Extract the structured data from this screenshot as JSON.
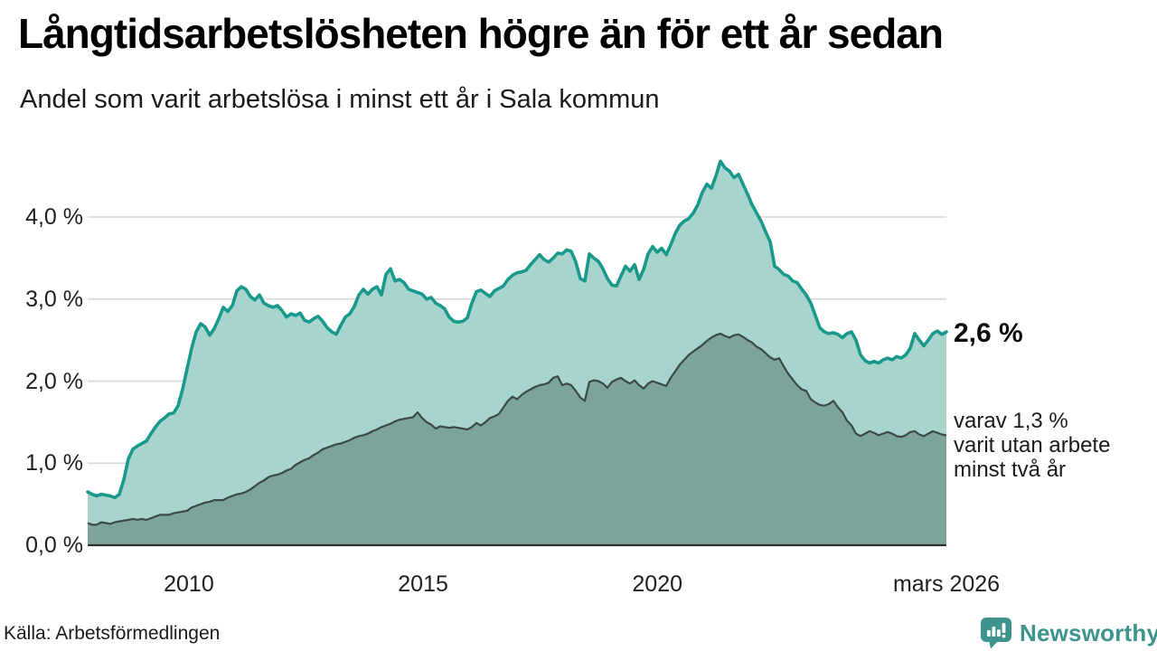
{
  "header": {
    "title": "Långtidsarbetslösheten högre än för ett år sedan",
    "subtitle": "Andel som varit arbetslösa i minst ett år i Sala kommun"
  },
  "annotations": {
    "total_end_label": "2,6 %",
    "two_year_lines": [
      "varav 1,3 %",
      "varit utan arbete",
      "minst två år"
    ]
  },
  "footer": {
    "source": "Källa: Arbetsförmedlingen",
    "brand": "Newsworthy"
  },
  "colors": {
    "grid": "#d7dadd",
    "axis": "#303030",
    "total_line": "#18998b",
    "total_fill": "#a7d5ce",
    "two_year_line": "#3b4a47",
    "two_year_fill": "#7ba49d",
    "brand_teal": "#3c948c"
  },
  "chart_data": {
    "type": "area",
    "title": "Långtidsarbetslösheten högre än för ett år sedan",
    "subtitle": "Andel som varit arbetslösa i minst ett år i Sala kommun",
    "source": "Källa: Arbetsförmedlingen",
    "unit": "%",
    "x_range": [
      2007.84,
      2026.17
    ],
    "ylim": [
      0,
      4.8
    ],
    "grid": true,
    "x_ticks": [
      {
        "value": 2010,
        "label": "2010"
      },
      {
        "value": 2015,
        "label": "2015"
      },
      {
        "value": 2020,
        "label": "2020"
      },
      {
        "value": 2026.17,
        "label": "mars 2026"
      }
    ],
    "y_ticks": [
      {
        "value": 0,
        "label": "0,0 %"
      },
      {
        "value": 1,
        "label": "1,0 %"
      },
      {
        "value": 2,
        "label": "2,0 %"
      },
      {
        "value": 3,
        "label": "3,0 %"
      },
      {
        "value": 4,
        "label": "4,0 %"
      }
    ],
    "series": [
      {
        "name": "Arbetslösa minst ett år",
        "end_value": "2,6 %",
        "values": [
          0.65,
          0.62,
          0.6,
          0.62,
          0.61,
          0.6,
          0.58,
          0.62,
          0.8,
          1.05,
          1.17,
          1.21,
          1.24,
          1.27,
          1.36,
          1.44,
          1.51,
          1.55,
          1.6,
          1.61,
          1.7,
          1.9,
          2.15,
          2.4,
          2.6,
          2.7,
          2.66,
          2.56,
          2.64,
          2.76,
          2.9,
          2.85,
          2.92,
          3.1,
          3.15,
          3.12,
          3.03,
          2.99,
          3.05,
          2.95,
          2.92,
          2.9,
          2.92,
          2.86,
          2.78,
          2.82,
          2.8,
          2.83,
          2.74,
          2.72,
          2.76,
          2.79,
          2.73,
          2.65,
          2.6,
          2.57,
          2.68,
          2.78,
          2.82,
          2.91,
          3.05,
          3.12,
          3.06,
          3.12,
          3.15,
          3.05,
          3.3,
          3.37,
          3.22,
          3.24,
          3.2,
          3.12,
          3.1,
          3.08,
          3.06,
          3.0,
          3.02,
          2.95,
          2.92,
          2.88,
          2.78,
          2.73,
          2.72,
          2.73,
          2.77,
          2.95,
          3.09,
          3.11,
          3.07,
          3.03,
          3.1,
          3.13,
          3.16,
          3.24,
          3.29,
          3.32,
          3.33,
          3.35,
          3.42,
          3.48,
          3.54,
          3.48,
          3.45,
          3.5,
          3.56,
          3.55,
          3.6,
          3.58,
          3.45,
          3.25,
          3.22,
          3.55,
          3.5,
          3.46,
          3.37,
          3.25,
          3.17,
          3.16,
          3.28,
          3.4,
          3.34,
          3.42,
          3.24,
          3.36,
          3.55,
          3.64,
          3.57,
          3.62,
          3.54,
          3.66,
          3.8,
          3.9,
          3.95,
          3.98,
          4.05,
          4.15,
          4.3,
          4.4,
          4.35,
          4.5,
          4.68,
          4.6,
          4.56,
          4.48,
          4.52,
          4.4,
          4.28,
          4.15,
          4.05,
          3.95,
          3.82,
          3.7,
          3.4,
          3.36,
          3.3,
          3.28,
          3.22,
          3.2,
          3.12,
          3.05,
          2.95,
          2.8,
          2.65,
          2.6,
          2.58,
          2.59,
          2.57,
          2.53,
          2.58,
          2.6,
          2.5,
          2.32,
          2.25,
          2.22,
          2.24,
          2.22,
          2.26,
          2.28,
          2.26,
          2.3,
          2.28,
          2.32,
          2.4,
          2.58,
          2.5,
          2.43,
          2.5,
          2.58,
          2.61,
          2.57,
          2.6
        ]
      },
      {
        "name": "Varav utan arbete minst två år",
        "end_value": "1,3 %",
        "values": [
          0.27,
          0.25,
          0.25,
          0.28,
          0.27,
          0.26,
          0.28,
          0.29,
          0.3,
          0.31,
          0.32,
          0.31,
          0.32,
          0.31,
          0.33,
          0.35,
          0.37,
          0.37,
          0.37,
          0.39,
          0.4,
          0.41,
          0.42,
          0.46,
          0.48,
          0.5,
          0.52,
          0.53,
          0.55,
          0.55,
          0.55,
          0.58,
          0.6,
          0.62,
          0.63,
          0.65,
          0.68,
          0.72,
          0.76,
          0.79,
          0.83,
          0.85,
          0.86,
          0.88,
          0.91,
          0.93,
          0.98,
          1.01,
          1.04,
          1.06,
          1.1,
          1.13,
          1.17,
          1.19,
          1.21,
          1.23,
          1.24,
          1.26,
          1.28,
          1.31,
          1.33,
          1.34,
          1.36,
          1.39,
          1.41,
          1.44,
          1.46,
          1.48,
          1.51,
          1.53,
          1.54,
          1.55,
          1.56,
          1.62,
          1.55,
          1.5,
          1.47,
          1.42,
          1.45,
          1.44,
          1.43,
          1.44,
          1.43,
          1.42,
          1.41,
          1.44,
          1.49,
          1.46,
          1.5,
          1.55,
          1.57,
          1.6,
          1.68,
          1.76,
          1.81,
          1.78,
          1.83,
          1.87,
          1.9,
          1.93,
          1.95,
          1.96,
          1.98,
          2.04,
          2.06,
          1.95,
          1.97,
          1.95,
          1.88,
          1.8,
          1.76,
          1.99,
          2.01,
          2.0,
          1.97,
          1.92,
          1.99,
          2.02,
          2.04,
          2.0,
          1.97,
          2.01,
          1.95,
          1.91,
          1.97,
          2.0,
          1.98,
          1.96,
          1.94,
          2.04,
          2.12,
          2.2,
          2.26,
          2.32,
          2.36,
          2.4,
          2.44,
          2.49,
          2.53,
          2.56,
          2.58,
          2.55,
          2.53,
          2.56,
          2.57,
          2.54,
          2.5,
          2.47,
          2.42,
          2.39,
          2.34,
          2.29,
          2.26,
          2.28,
          2.18,
          2.09,
          2.02,
          1.95,
          1.9,
          1.88,
          1.78,
          1.74,
          1.71,
          1.7,
          1.72,
          1.76,
          1.68,
          1.62,
          1.52,
          1.46,
          1.36,
          1.33,
          1.36,
          1.39,
          1.37,
          1.34,
          1.36,
          1.38,
          1.36,
          1.33,
          1.32,
          1.34,
          1.38,
          1.39,
          1.35,
          1.33,
          1.36,
          1.39,
          1.37,
          1.35,
          1.34
        ]
      }
    ]
  }
}
